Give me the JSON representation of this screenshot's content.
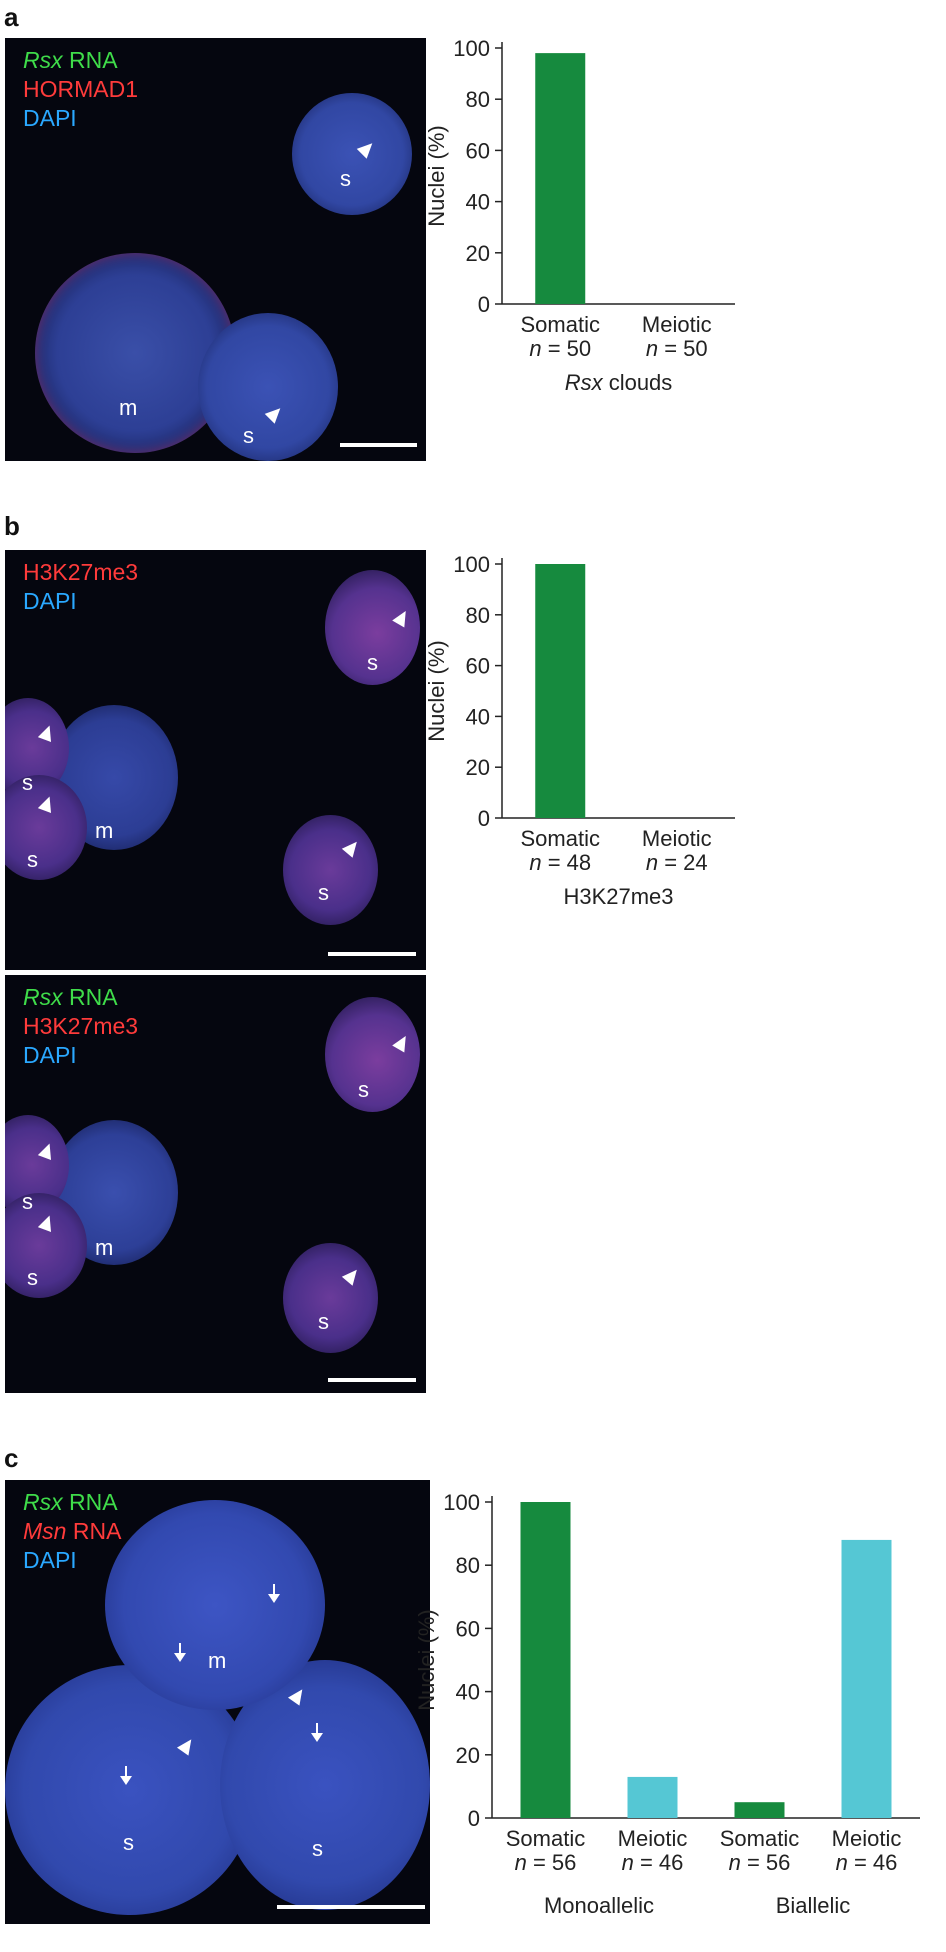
{
  "panels": {
    "a": {
      "letter": "a",
      "legend": [
        {
          "italic": "Rsx",
          "text": " RNA",
          "color": "green"
        },
        {
          "italic": "",
          "text": "HORMAD1",
          "color": "red"
        },
        {
          "italic": "",
          "text": "DAPI",
          "color": "blue"
        }
      ],
      "labels": {
        "s1": "s",
        "s2": "s",
        "m": "m"
      }
    },
    "b": {
      "letter": "b",
      "legend_top": [
        {
          "italic": "",
          "text": "H3K27me3",
          "color": "red"
        },
        {
          "italic": "",
          "text": "DAPI",
          "color": "blue"
        }
      ],
      "legend_bottom": [
        {
          "italic": "Rsx",
          "text": " RNA",
          "color": "green"
        },
        {
          "italic": "",
          "text": "H3K27me3",
          "color": "red"
        },
        {
          "italic": "",
          "text": "DAPI",
          "color": "blue"
        }
      ],
      "labels": {
        "s": "s",
        "m": "m"
      }
    },
    "c": {
      "letter": "c",
      "legend": [
        {
          "italic": "Rsx",
          "text": " RNA",
          "color": "green"
        },
        {
          "italic": "Msn",
          "text": " RNA",
          "color": "red"
        },
        {
          "italic": "",
          "text": "DAPI",
          "color": "blue"
        }
      ],
      "labels": {
        "m": "m",
        "s": "s"
      }
    }
  },
  "colors": {
    "somatic": "#168a3e",
    "meiotic": "#55c7d4",
    "legend_green": "#3fdc4a",
    "legend_red": "#ff3b3b",
    "legend_blue": "#2aa8ff"
  },
  "chart_data": [
    {
      "type": "bar",
      "ylabel": "Nuclei (%)",
      "ylim": [
        0,
        100
      ],
      "yticks": [
        0,
        20,
        40,
        60,
        80,
        100
      ],
      "categories": [
        {
          "label": "Somatic",
          "n": "n = 50"
        },
        {
          "label": "Meiotic",
          "n": "n = 50"
        }
      ],
      "values": [
        98,
        0
      ],
      "bar_colors": [
        "somatic",
        "somatic"
      ],
      "xlabel_italic": "Rsx",
      "xlabel": " clouds"
    },
    {
      "type": "bar",
      "ylabel": "Nuclei (%)",
      "ylim": [
        0,
        100
      ],
      "yticks": [
        0,
        20,
        40,
        60,
        80,
        100
      ],
      "categories": [
        {
          "label": "Somatic",
          "n": "n = 48"
        },
        {
          "label": "Meiotic",
          "n": "n = 24"
        }
      ],
      "values": [
        100,
        0
      ],
      "bar_colors": [
        "somatic",
        "somatic"
      ],
      "xlabel_italic": "",
      "xlabel": "H3K27me3"
    },
    {
      "type": "bar",
      "ylabel": "Nuclei (%)",
      "ylim": [
        0,
        100
      ],
      "yticks": [
        0,
        20,
        40,
        60,
        80,
        100
      ],
      "categories": [
        {
          "label": "Somatic",
          "n": "n = 56"
        },
        {
          "label": "Meiotic",
          "n": "n = 46"
        },
        {
          "label": "Somatic",
          "n": "n = 56"
        },
        {
          "label": "Meiotic",
          "n": "n = 46"
        }
      ],
      "values": [
        100,
        13,
        5,
        88
      ],
      "bar_colors": [
        "somatic",
        "meiotic",
        "somatic",
        "meiotic"
      ],
      "groups": [
        "Monoallelic",
        "Biallelic"
      ]
    }
  ]
}
